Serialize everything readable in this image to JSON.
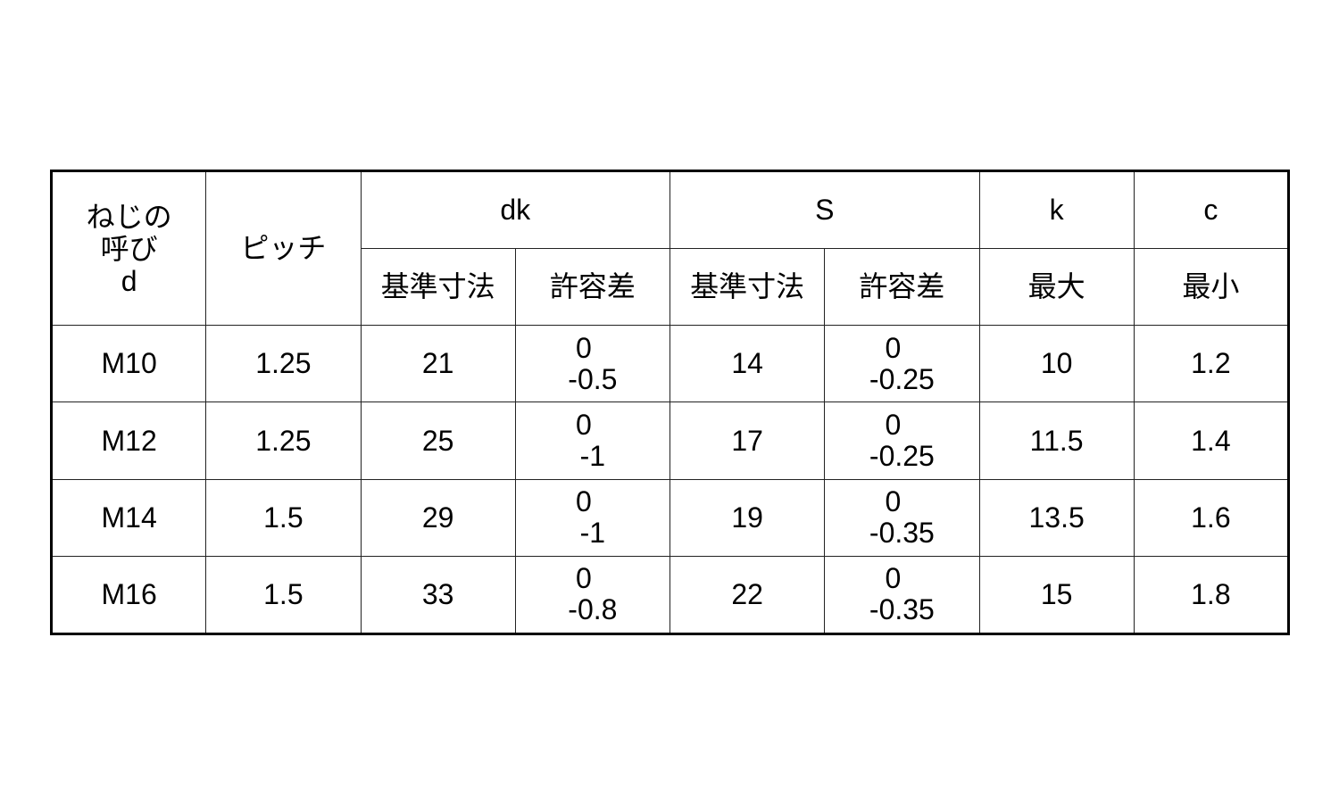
{
  "headers": {
    "nominal": [
      "ねじの",
      "呼び",
      "d"
    ],
    "pitch": "ピッチ",
    "dk": "dk",
    "s": "S",
    "k": "k",
    "c": "c",
    "basic": "基準寸法",
    "tolerance": "許容差",
    "k_sub": "最大",
    "c_sub": "最小"
  },
  "rows": [
    {
      "d": "M10",
      "pitch": "1.25",
      "dk": "21",
      "dk_tol": [
        "0",
        "-0.5"
      ],
      "s": "14",
      "s_tol": [
        "0",
        "-0.25"
      ],
      "k": "10",
      "c": "1.2"
    },
    {
      "d": "M12",
      "pitch": "1.25",
      "dk": "25",
      "dk_tol": [
        "0",
        "-1"
      ],
      "s": "17",
      "s_tol": [
        "0",
        "-0.25"
      ],
      "k": "11.5",
      "c": "1.4"
    },
    {
      "d": "M14",
      "pitch": "1.5",
      "dk": "29",
      "dk_tol": [
        "0",
        "-1"
      ],
      "s": "19",
      "s_tol": [
        "0",
        "-0.35"
      ],
      "k": "13.5",
      "c": "1.6"
    },
    {
      "d": "M16",
      "pitch": "1.5",
      "dk": "33",
      "dk_tol": [
        "0",
        "-0.8"
      ],
      "s": "22",
      "s_tol": [
        "0",
        "-0.35"
      ],
      "k": "15",
      "c": "1.8"
    }
  ]
}
